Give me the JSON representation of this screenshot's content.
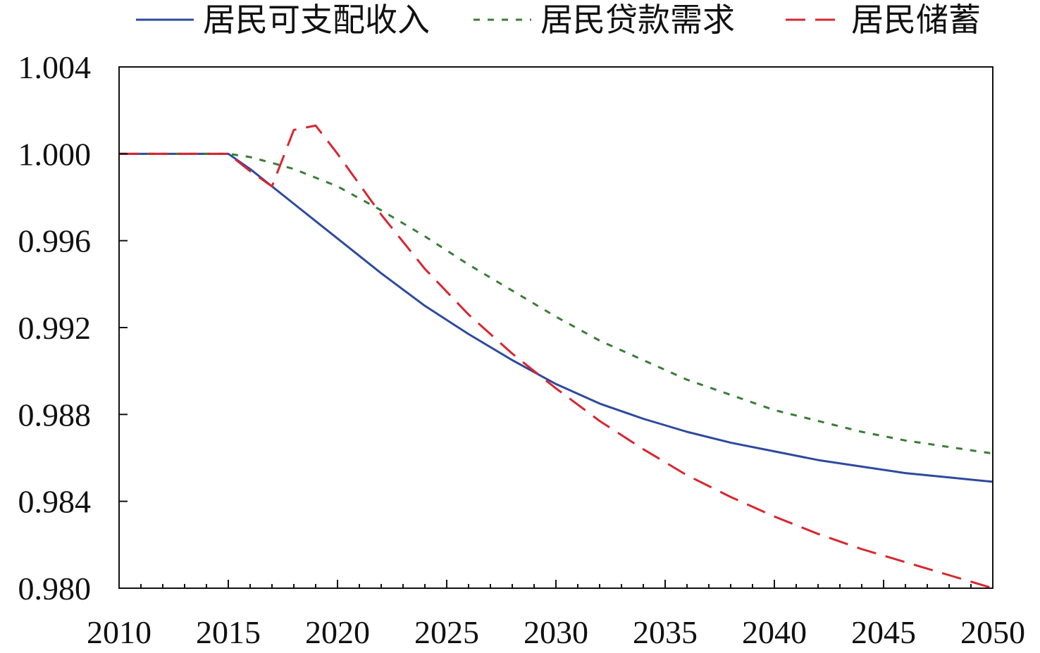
{
  "chart_data": {
    "type": "line",
    "title": "",
    "xlabel": "",
    "ylabel": "",
    "xlim": [
      2010,
      2050
    ],
    "ylim": [
      0.98,
      1.004
    ],
    "x_ticks": [
      2010,
      2015,
      2020,
      2025,
      2030,
      2035,
      2040,
      2045,
      2050
    ],
    "x_tick_labels": [
      "2010",
      "2015",
      "2020",
      "2025",
      "2030",
      "2035",
      "2040",
      "2045",
      "2050"
    ],
    "y_ticks": [
      0.98,
      0.984,
      0.988,
      0.992,
      0.996,
      1.0,
      1.004
    ],
    "y_tick_labels": [
      "0.980",
      "0.984",
      "0.988",
      "0.992",
      "0.996",
      "1.000",
      "1.004"
    ],
    "x_minor_step": 1,
    "grid": false,
    "legend_position": "top",
    "series": [
      {
        "name": "居民可支配收入",
        "color": "#2e4a9e",
        "dash": "solid",
        "x": [
          2010,
          2015,
          2016,
          2017,
          2018,
          2019,
          2020,
          2022,
          2024,
          2026,
          2028,
          2030,
          2032,
          2034,
          2036,
          2038,
          2040,
          2042,
          2044,
          2046,
          2048,
          2050
        ],
        "y": [
          1.0,
          1.0,
          0.9993,
          0.9985,
          0.9977,
          0.9969,
          0.9961,
          0.9945,
          0.993,
          0.9917,
          0.9905,
          0.9894,
          0.9885,
          0.9878,
          0.9872,
          0.9867,
          0.9863,
          0.9859,
          0.9856,
          0.9853,
          0.9851,
          0.9849
        ]
      },
      {
        "name": "居民贷款需求",
        "color": "#3a7d36",
        "dash": "dotted",
        "x": [
          2010,
          2015,
          2016,
          2017,
          2018,
          2019,
          2020,
          2022,
          2024,
          2026,
          2028,
          2030,
          2032,
          2034,
          2036,
          2038,
          2040,
          2042,
          2044,
          2046,
          2048,
          2050
        ],
        "y": [
          1.0,
          1.0,
          0.99985,
          0.99958,
          0.9993,
          0.9989,
          0.9985,
          0.9974,
          0.9962,
          0.9949,
          0.9937,
          0.9925,
          0.9914,
          0.9905,
          0.9896,
          0.9889,
          0.9882,
          0.9877,
          0.9872,
          0.9868,
          0.9865,
          0.9862
        ]
      },
      {
        "name": "居民储蓄",
        "color": "#d8262f",
        "dash": "dashed",
        "x": [
          2010,
          2015,
          2016,
          2017,
          2018,
          2019,
          2020,
          2022,
          2024,
          2026,
          2028,
          2030,
          2032,
          2034,
          2036,
          2038,
          2040,
          2042,
          2044,
          2046,
          2048,
          2050
        ],
        "y": [
          1.0,
          1.0,
          0.9992,
          0.9985,
          1.0011,
          1.0013,
          1.0,
          0.9972,
          0.9947,
          0.9926,
          0.9908,
          0.9892,
          0.9877,
          0.9864,
          0.9852,
          0.9842,
          0.9833,
          0.9825,
          0.9818,
          0.9812,
          0.9806,
          0.98
        ]
      }
    ]
  }
}
